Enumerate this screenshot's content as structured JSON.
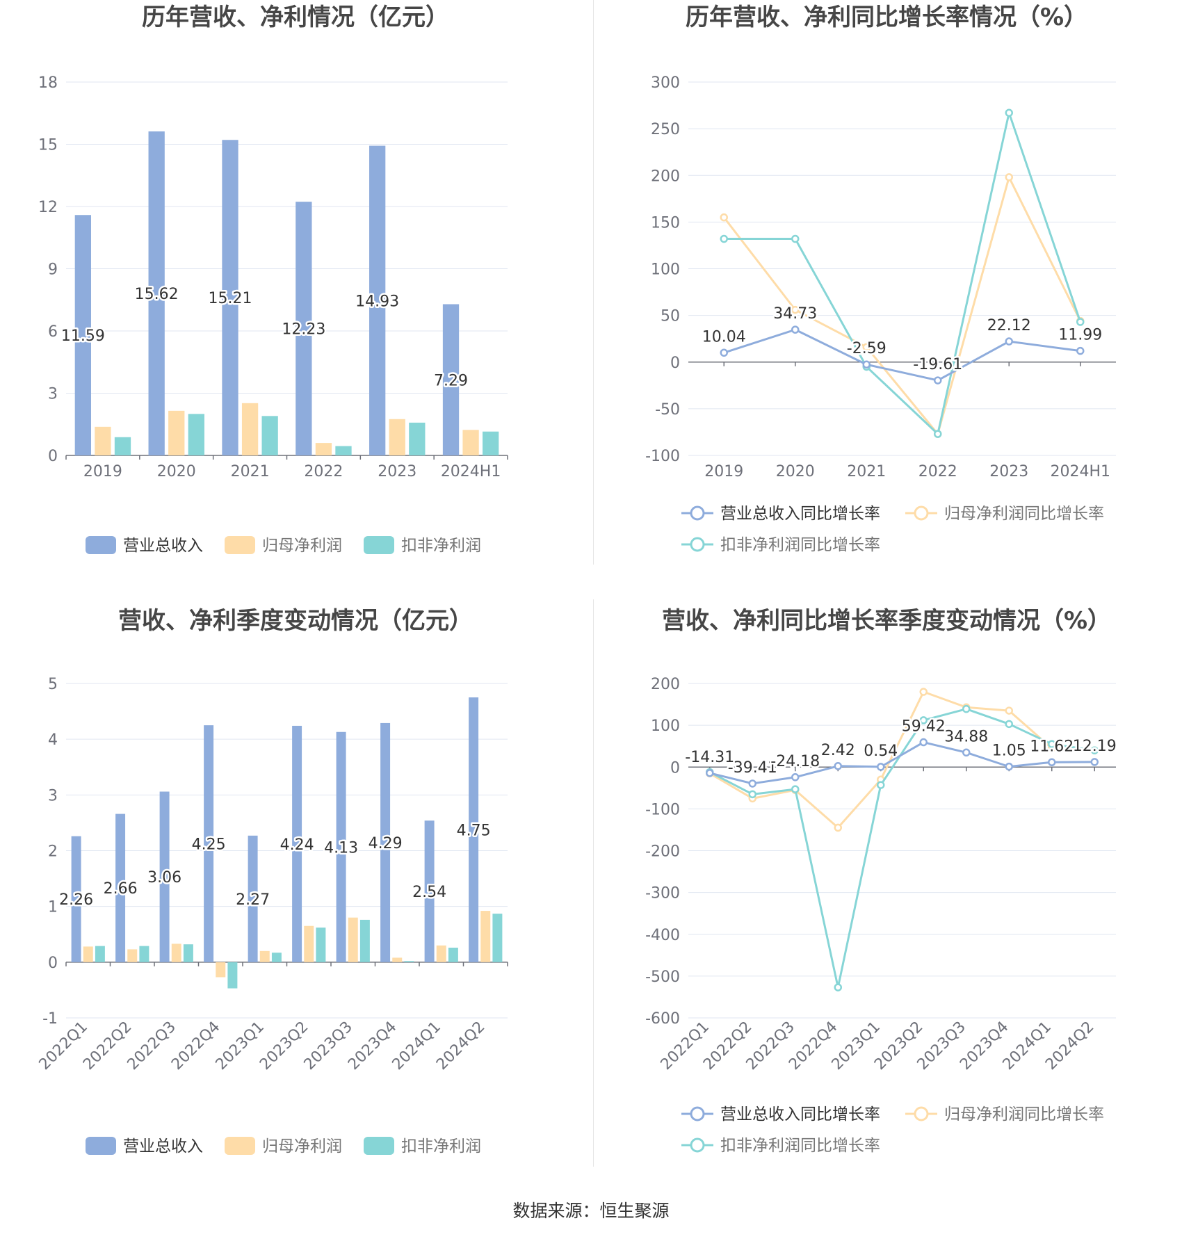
{
  "colors": {
    "revenue": "#8eacdc",
    "parent_profit": "#fedca8",
    "deducted_profit": "#86d5d6"
  },
  "source": "数据来源：恒生聚源",
  "chart_data": [
    {
      "id": "annual-amount",
      "type": "bar",
      "title": "历年营收、净利情况（亿元）",
      "categories": [
        "2019",
        "2020",
        "2021",
        "2022",
        "2023",
        "2024H1"
      ],
      "ylim": [
        0,
        18
      ],
      "yticks": [
        0,
        3,
        6,
        9,
        12,
        15,
        18
      ],
      "grid": true,
      "legend_position": "bottom",
      "label_series": 0,
      "series": [
        {
          "name": "营业总收入",
          "color": "#8eacdc",
          "labels": [
            "11.59",
            "15.62",
            "15.21",
            "12.23",
            "14.93",
            "7.29"
          ],
          "values": [
            11.59,
            15.62,
            15.21,
            12.23,
            14.93,
            7.29
          ]
        },
        {
          "name": "归母净利润",
          "color": "#fedca8",
          "values": [
            1.38,
            2.15,
            2.52,
            0.6,
            1.75,
            1.23
          ]
        },
        {
          "name": "扣非净利润",
          "color": "#86d5d6",
          "values": [
            0.88,
            2.0,
            1.9,
            0.45,
            1.58,
            1.15
          ]
        }
      ]
    },
    {
      "id": "annual-growth",
      "type": "line",
      "title": "历年营收、净利同比增长率情况（%）",
      "categories": [
        "2019",
        "2020",
        "2021",
        "2022",
        "2023",
        "2024H1"
      ],
      "ylim": [
        -100,
        300
      ],
      "yticks": [
        -100,
        -50,
        0,
        50,
        100,
        150,
        200,
        250,
        300
      ],
      "grid": true,
      "legend_position": "bottom",
      "label_series": 0,
      "series": [
        {
          "name": "营业总收入同比增长率",
          "color": "#8eacdc",
          "labels": [
            "10.04",
            "34.73",
            "-2.59",
            "-19.61",
            "22.12",
            "11.99"
          ],
          "values": [
            10.04,
            34.73,
            -2.59,
            -19.61,
            22.12,
            11.99
          ]
        },
        {
          "name": "归母净利润同比增长率",
          "color": "#fedca8",
          "values": [
            155,
            56,
            16,
            -77,
            198,
            44
          ]
        },
        {
          "name": "扣非净利润同比增长率",
          "color": "#86d5d6",
          "values": [
            132,
            132,
            -5,
            -77,
            267,
            43
          ]
        }
      ]
    },
    {
      "id": "quarterly-amount",
      "type": "bar",
      "title": "营收、净利季度变动情况（亿元）",
      "categories": [
        "2022Q1",
        "2022Q2",
        "2022Q3",
        "2022Q4",
        "2023Q1",
        "2023Q2",
        "2023Q3",
        "2023Q4",
        "2024Q1",
        "2024Q2"
      ],
      "ylim": [
        -1,
        5
      ],
      "yticks": [
        -1,
        0,
        1,
        2,
        3,
        4,
        5
      ],
      "grid": true,
      "legend_position": "bottom",
      "label_series": 0,
      "series": [
        {
          "name": "营业总收入",
          "color": "#8eacdc",
          "labels": [
            "2.26",
            "2.66",
            "3.06",
            "4.25",
            "2.27",
            "4.24",
            "4.13",
            "4.29",
            "2.54",
            "4.75"
          ],
          "values": [
            2.26,
            2.66,
            3.06,
            4.25,
            2.27,
            4.24,
            4.13,
            4.29,
            2.54,
            4.75
          ]
        },
        {
          "name": "归母净利润",
          "color": "#fedca8",
          "values": [
            0.28,
            0.23,
            0.33,
            -0.27,
            0.2,
            0.65,
            0.8,
            0.08,
            0.3,
            0.92
          ]
        },
        {
          "name": "扣非净利润",
          "color": "#86d5d6",
          "values": [
            0.29,
            0.29,
            0.32,
            -0.47,
            0.17,
            0.62,
            0.76,
            0.02,
            0.26,
            0.87
          ]
        }
      ]
    },
    {
      "id": "quarterly-growth",
      "type": "line",
      "title": "营收、净利同比增长率季度变动情况（%）",
      "categories": [
        "2022Q1",
        "2022Q2",
        "2022Q3",
        "2022Q4",
        "2023Q1",
        "2023Q2",
        "2023Q3",
        "2023Q4",
        "2024Q1",
        "2024Q2"
      ],
      "ylim": [
        -600,
        200
      ],
      "yticks": [
        -600,
        -500,
        -400,
        -300,
        -200,
        -100,
        0,
        100,
        200
      ],
      "grid": true,
      "legend_position": "bottom",
      "label_series": 0,
      "series": [
        {
          "name": "营业总收入同比增长率",
          "color": "#8eacdc",
          "labels": [
            "-14.31",
            "-39.41",
            "-24.18",
            "2.42",
            "0.54",
            "59.42",
            "34.88",
            "1.05",
            "11.62",
            "12.19"
          ],
          "values": [
            -14.31,
            -39.41,
            -24.18,
            2.42,
            0.54,
            59.42,
            34.88,
            1.05,
            11.62,
            12.19
          ]
        },
        {
          "name": "归母净利润同比增长率",
          "color": "#fedca8",
          "values": [
            -15,
            -75,
            -55,
            -145,
            -30,
            180,
            143,
            135,
            45,
            40
          ]
        },
        {
          "name": "扣非净利润同比增长率",
          "color": "#86d5d6",
          "values": [
            -12,
            -65,
            -53,
            -527,
            -43,
            112,
            139,
            103,
            55,
            40
          ]
        }
      ]
    }
  ]
}
